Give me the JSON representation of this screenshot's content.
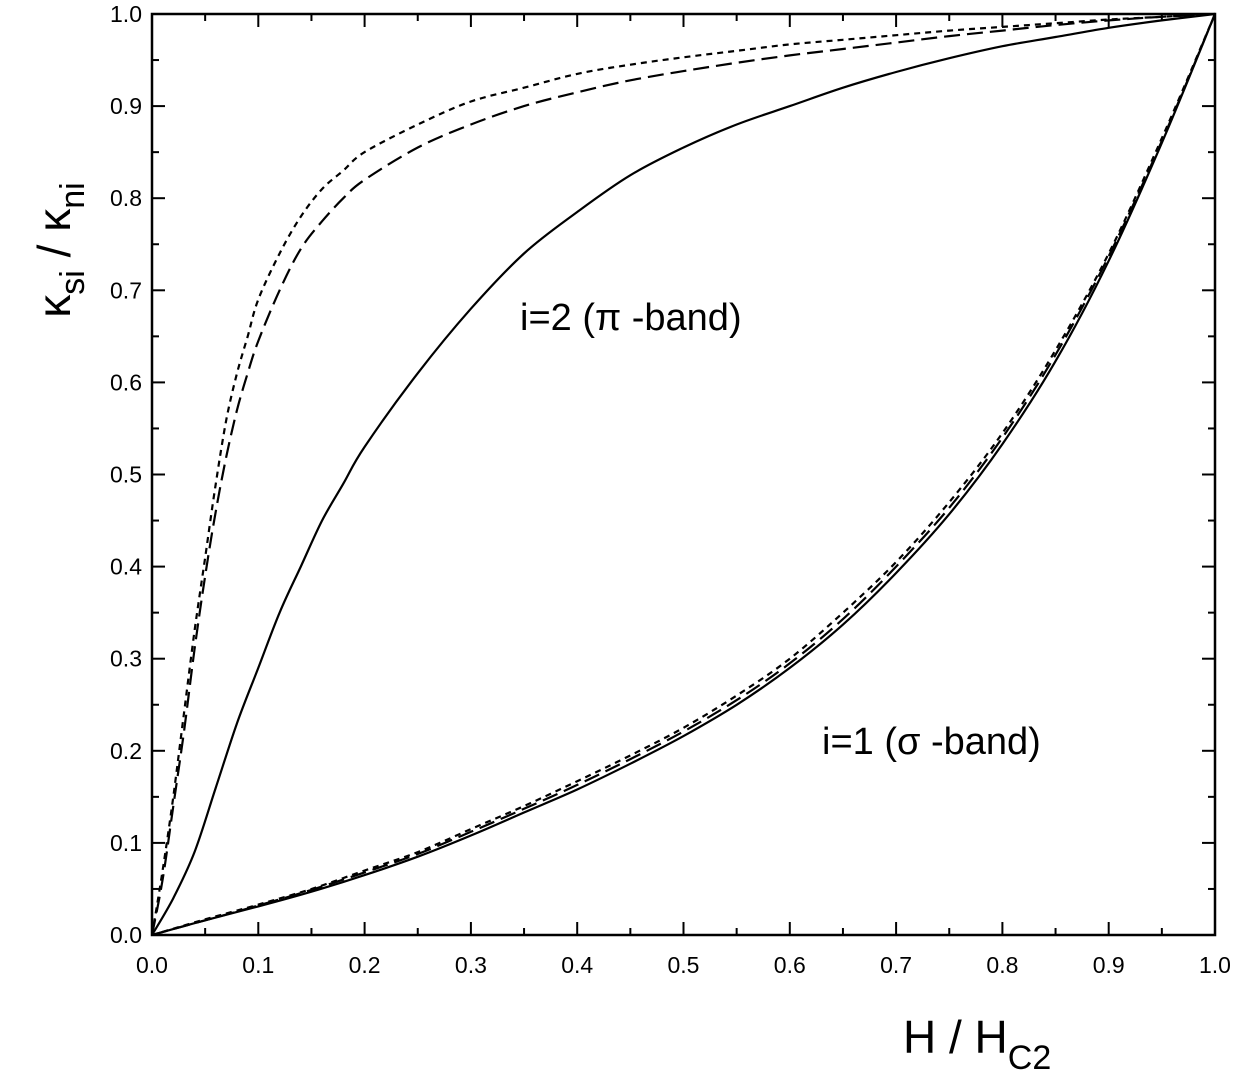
{
  "chart_data": {
    "type": "line",
    "title": "",
    "xlabel": {
      "main": "H / H",
      "sub": "C2"
    },
    "ylabel": {
      "part1": "κ",
      "sub1": "si",
      "sep": " / ",
      "part2": "κ",
      "sub2": "ni"
    },
    "xlim": [
      0.0,
      1.0
    ],
    "ylim": [
      0.0,
      1.0
    ],
    "xticks": [
      "0.0",
      "0.1",
      "0.2",
      "0.3",
      "0.4",
      "0.5",
      "0.6",
      "0.7",
      "0.8",
      "0.9",
      "1.0"
    ],
    "yticks": [
      "0.0",
      "0.1",
      "0.2",
      "0.3",
      "0.4",
      "0.5",
      "0.6",
      "0.7",
      "0.8",
      "0.9",
      "1.0"
    ],
    "grid": false,
    "legend": "none",
    "annotations": [
      {
        "text": "i=2 (π -band)",
        "x": 0.35,
        "y": 0.675
      },
      {
        "text": "i=1 (σ -band)",
        "x": 0.63,
        "y": 0.21
      }
    ],
    "series": [
      {
        "group": "i=2",
        "style": "dotted",
        "x": [
          0,
          0.01,
          0.02,
          0.03,
          0.04,
          0.05,
          0.06,
          0.07,
          0.08,
          0.09,
          0.1,
          0.12,
          0.14,
          0.16,
          0.18,
          0.2,
          0.25,
          0.3,
          0.35,
          0.4,
          0.45,
          0.5,
          0.55,
          0.6,
          0.65,
          0.7,
          0.75,
          0.8,
          0.85,
          0.9,
          0.95,
          1.0
        ],
        "y": [
          0,
          0.07,
          0.15,
          0.24,
          0.33,
          0.41,
          0.49,
          0.56,
          0.61,
          0.65,
          0.69,
          0.74,
          0.78,
          0.81,
          0.83,
          0.85,
          0.88,
          0.905,
          0.92,
          0.935,
          0.945,
          0.953,
          0.96,
          0.967,
          0.972,
          0.977,
          0.982,
          0.986,
          0.99,
          0.994,
          0.997,
          1.0
        ]
      },
      {
        "group": "i=2",
        "style": "dashed",
        "x": [
          0,
          0.01,
          0.02,
          0.03,
          0.04,
          0.05,
          0.06,
          0.07,
          0.08,
          0.09,
          0.1,
          0.12,
          0.14,
          0.16,
          0.18,
          0.2,
          0.25,
          0.3,
          0.35,
          0.4,
          0.45,
          0.5,
          0.55,
          0.6,
          0.65,
          0.7,
          0.75,
          0.8,
          0.85,
          0.9,
          0.95,
          1.0
        ],
        "y": [
          0,
          0.06,
          0.14,
          0.22,
          0.31,
          0.39,
          0.46,
          0.52,
          0.57,
          0.61,
          0.645,
          0.7,
          0.745,
          0.775,
          0.8,
          0.82,
          0.855,
          0.88,
          0.9,
          0.915,
          0.928,
          0.938,
          0.947,
          0.955,
          0.962,
          0.969,
          0.976,
          0.982,
          0.988,
          0.993,
          0.997,
          1.0
        ]
      },
      {
        "group": "i=2",
        "style": "solid",
        "x": [
          0,
          0.02,
          0.04,
          0.06,
          0.08,
          0.1,
          0.12,
          0.14,
          0.16,
          0.18,
          0.2,
          0.25,
          0.3,
          0.35,
          0.4,
          0.45,
          0.5,
          0.55,
          0.6,
          0.65,
          0.7,
          0.75,
          0.8,
          0.85,
          0.9,
          0.95,
          1.0
        ],
        "y": [
          0,
          0.04,
          0.09,
          0.16,
          0.23,
          0.29,
          0.35,
          0.4,
          0.45,
          0.49,
          0.53,
          0.61,
          0.68,
          0.74,
          0.785,
          0.825,
          0.855,
          0.88,
          0.9,
          0.92,
          0.937,
          0.952,
          0.965,
          0.975,
          0.985,
          0.993,
          1.0
        ]
      },
      {
        "group": "i=1",
        "style": "dotted",
        "x": [
          0,
          0.05,
          0.1,
          0.15,
          0.2,
          0.25,
          0.3,
          0.35,
          0.4,
          0.45,
          0.5,
          0.55,
          0.6,
          0.65,
          0.7,
          0.75,
          0.8,
          0.85,
          0.9,
          0.95,
          1.0
        ],
        "y": [
          0,
          0.017,
          0.033,
          0.05,
          0.07,
          0.09,
          0.115,
          0.14,
          0.167,
          0.195,
          0.225,
          0.26,
          0.3,
          0.35,
          0.405,
          0.47,
          0.545,
          0.635,
          0.74,
          0.865,
          1.0
        ]
      },
      {
        "group": "i=1",
        "style": "dashed",
        "x": [
          0,
          0.05,
          0.1,
          0.15,
          0.2,
          0.25,
          0.3,
          0.35,
          0.4,
          0.45,
          0.5,
          0.55,
          0.6,
          0.65,
          0.7,
          0.75,
          0.8,
          0.85,
          0.9,
          0.95,
          1.0
        ],
        "y": [
          0,
          0.016,
          0.032,
          0.049,
          0.068,
          0.088,
          0.112,
          0.137,
          0.163,
          0.191,
          0.221,
          0.255,
          0.295,
          0.343,
          0.4,
          0.464,
          0.54,
          0.63,
          0.737,
          0.862,
          1.0
        ]
      },
      {
        "group": "i=1",
        "style": "solid",
        "x": [
          0,
          0.05,
          0.1,
          0.15,
          0.2,
          0.25,
          0.3,
          0.35,
          0.4,
          0.45,
          0.5,
          0.55,
          0.6,
          0.65,
          0.7,
          0.75,
          0.8,
          0.85,
          0.9,
          0.95,
          1.0
        ],
        "y": [
          0,
          0.016,
          0.031,
          0.047,
          0.065,
          0.085,
          0.108,
          0.133,
          0.158,
          0.186,
          0.216,
          0.25,
          0.29,
          0.337,
          0.393,
          0.457,
          0.533,
          0.623,
          0.732,
          0.86,
          1.0
        ]
      }
    ]
  }
}
